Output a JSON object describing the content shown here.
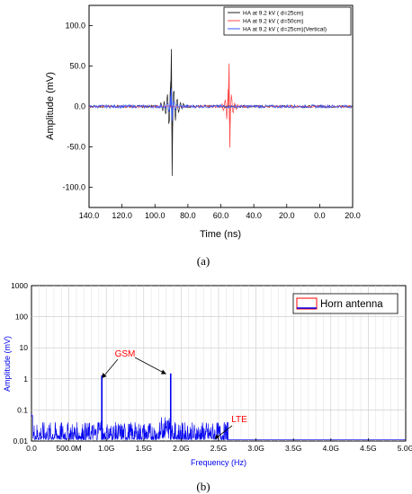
{
  "panel_labels": [
    "(a)",
    "(b)"
  ],
  "chart_data": [
    {
      "type": "line",
      "xlabel": "Time (ns)",
      "ylabel": "Amplitude (mV)",
      "xlim": [
        140,
        -20
      ],
      "ylim": [
        -125,
        125
      ],
      "x_ticks": [
        "140.0",
        "120.0",
        "100.0",
        "80.0",
        "60.0",
        "40.0",
        "20.0",
        "0.0",
        "20.0"
      ],
      "y_ticks": [
        "-100.0",
        "-50.0",
        "0.0",
        "50.0",
        "100.0"
      ],
      "legend_position": "top-right",
      "colors": {
        "series1": "#222222",
        "series2": "#ff4444",
        "series3": "#3355ff"
      },
      "series": [
        {
          "name": "HA at 9.2 kV ( d=25cm)",
          "peak_time_ns": 90,
          "max_mV": 71,
          "min_mV": -86
        },
        {
          "name": "HA at 9.2 kV ( d=50cm)",
          "peak_time_ns": 55,
          "max_mV": 53,
          "min_mV": -51
        },
        {
          "name": "HA at 9.2 kV ( d=25cm)(Vertical)",
          "peak_time_ns": 90,
          "max_mV": 22,
          "min_mV": -18
        }
      ]
    },
    {
      "type": "line",
      "xlabel": "Frequency (Hz)",
      "ylabel": "Amplitude (mV)",
      "xlim": [
        0,
        5000000000
      ],
      "ylim": [
        0.01,
        1000
      ],
      "yscale": "log",
      "grid": true,
      "x_ticks": [
        "0.0",
        "500.0M",
        "1.0G",
        "1.5G",
        "2.0G",
        "2.5G",
        "3.0G",
        "3.5G",
        "4.0G",
        "4.5G",
        "5.0G"
      ],
      "y_ticks": [
        "0.01",
        "0.1",
        "1",
        "10",
        "100",
        "1000"
      ],
      "legend_position": "top-right",
      "colors": {
        "series": "#0000ee",
        "annotation": "#ff0000"
      },
      "series": [
        {
          "name": "Horn antenna",
          "peaks": [
            {
              "x": 940000000,
              "y": 1.3
            },
            {
              "x": 1860000000,
              "y": 1.5
            },
            {
              "x": 2620000000,
              "y": 0.04
            }
          ]
        }
      ],
      "annotations": [
        "GSM",
        "LTE"
      ]
    }
  ]
}
